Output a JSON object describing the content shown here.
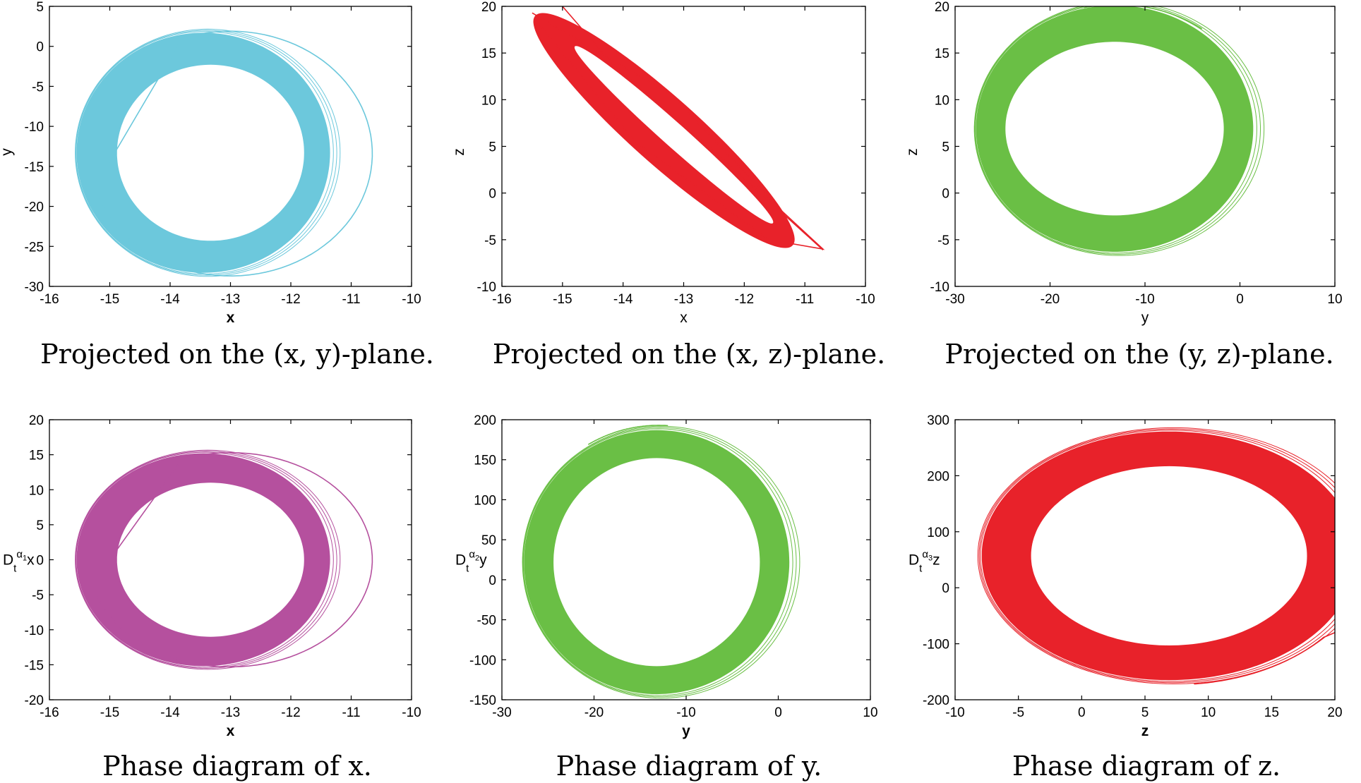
{
  "colors": {
    "cyan": "#6cc8dc",
    "red": "#e8222a",
    "green": "#6abf45",
    "magenta": "#b5509e"
  },
  "chart_data": [
    {
      "type": "line",
      "id": "xy",
      "title": "",
      "caption": "Projected on the (x, y)-plane.",
      "xlabel": "x",
      "xbold": true,
      "ylabel": "y",
      "ylabel_sub": "",
      "ylabel_tail": "",
      "xlim": [
        -16,
        -10
      ],
      "ylim": [
        -30,
        5
      ],
      "xticks": [
        -16,
        -15,
        -14,
        -13,
        -12,
        -11,
        -10
      ],
      "yticks": [
        -30,
        -25,
        -20,
        -15,
        -10,
        -5,
        0,
        5
      ],
      "xtick_labels": [
        "-16",
        "-15",
        "-14",
        "-13",
        "-12",
        "-11",
        "-10"
      ],
      "ytick_labels": [
        "-30",
        "-25",
        "-20",
        "-15",
        "-10",
        "-5",
        "0",
        "5"
      ],
      "color": "cyan",
      "attractor": {
        "cx": -13.45,
        "cy": -13.3,
        "rx_outer": 2.1,
        "ry_outer": 15.0,
        "rx_inner": 1.55,
        "ry_inner": 11.0,
        "rot": 0,
        "shift": 0.12
      },
      "orbit": {
        "cx": -13.0,
        "cy": -13.4,
        "rx": 2.35,
        "ry": 15.3,
        "rot": 0,
        "t0": 200,
        "t1": 470,
        "end": [
          -15.05,
          -15
        ]
      }
    },
    {
      "type": "line",
      "id": "xz",
      "title": "",
      "caption": "Projected on the (x, z)-plane.",
      "xlabel": "x",
      "xbold": false,
      "ylabel": "z",
      "ylabel_sub": "",
      "ylabel_tail": "",
      "xlim": [
        -16,
        -10
      ],
      "ylim": [
        -10,
        20
      ],
      "xticks": [
        -16,
        -15,
        -14,
        -13,
        -12,
        -11,
        -10
      ],
      "yticks": [
        -10,
        -5,
        0,
        5,
        10,
        15,
        20
      ],
      "xtick_labels": [
        "-16",
        "-15",
        "-14",
        "-13",
        "-12",
        "-11",
        "-10"
      ],
      "ytick_labels": [
        "-10",
        "-5",
        "0",
        "5",
        "10",
        "15",
        "20"
      ],
      "color": "red",
      "streak": {
        "from": [
          -15.45,
          19.0
        ],
        "to": [
          -11.2,
          -5.6
        ],
        "width": 0.55
      },
      "outer_loop": [
        [
          -15.5,
          19.3
        ],
        [
          -13.2,
          10.5
        ],
        [
          -11.4,
          -1.8
        ],
        [
          -10.7,
          -6.0
        ],
        [
          -11.6,
          -5.0
        ],
        [
          -13.8,
          5.5
        ],
        [
          -15.4,
          18.2
        ]
      ],
      "tail": [
        [
          -15.0,
          20.0
        ],
        [
          -14.2,
          14.0
        ],
        [
          -12.5,
          4.5
        ],
        [
          -10.7,
          -6.1
        ]
      ]
    },
    {
      "type": "line",
      "id": "yz",
      "title": "",
      "caption": "Projected on the (y, z)-plane.",
      "xlabel": "y",
      "xbold": false,
      "ylabel": "z",
      "ylabel_sub": "",
      "ylabel_tail": "",
      "xlim": [
        -30,
        10
      ],
      "ylim": [
        -10,
        20
      ],
      "xticks": [
        -30,
        -20,
        -10,
        0,
        10
      ],
      "yticks": [
        -10,
        -5,
        0,
        5,
        10,
        15,
        20
      ],
      "xtick_labels": [
        "-30",
        "-20",
        "-10",
        "0",
        "10"
      ],
      "ytick_labels": [
        "-10",
        "-5",
        "0",
        "5",
        "10",
        "15",
        "20"
      ],
      "color": "green",
      "attractor": {
        "cx": -13.2,
        "cy": 6.9,
        "rx_outer": 14.6,
        "ry_outer": 13.2,
        "rx_inner": 11.5,
        "ry_inner": 9.3,
        "rot": -0.12,
        "shift": 0.0
      },
      "orbit": {
        "cx": -13.0,
        "cy": 7.2,
        "rx": 15.0,
        "ry": 13.0,
        "rot": -0.12,
        "t0": 60,
        "t1": 110,
        "end": null
      }
    },
    {
      "type": "line",
      "id": "px",
      "title": "",
      "caption": "Phase diagram of x.",
      "xlabel": "x",
      "xbold": true,
      "ylabel": "D",
      "ylabel_sub": "t",
      "ylabel_sup": "α",
      "ylabel_sup_sub": "1",
      "ylabel_tail": "x",
      "xlim": [
        -16,
        -10
      ],
      "ylim": [
        -20,
        20
      ],
      "xticks": [
        -16,
        -15,
        -14,
        -13,
        -12,
        -11,
        -10
      ],
      "yticks": [
        -20,
        -15,
        -10,
        -5,
        0,
        5,
        10,
        15,
        20
      ],
      "xtick_labels": [
        "-16",
        "-15",
        "-14",
        "-13",
        "-12",
        "-11",
        "-10"
      ],
      "ytick_labels": [
        "-20",
        "-15",
        "-10",
        "-5",
        "0",
        "5",
        "10",
        "15",
        "20"
      ],
      "color": "magenta",
      "attractor": {
        "cx": -13.45,
        "cy": 0.0,
        "rx_outer": 2.1,
        "ry_outer": 15.2,
        "rx_inner": 1.55,
        "ry_inner": 11.0,
        "rot": 0,
        "shift": 0.12
      },
      "orbit": {
        "cx": -13.0,
        "cy": 0.0,
        "rx": 2.35,
        "ry": 15.3,
        "rot": 0,
        "t0": 200,
        "t1": 470,
        "end": [
          -15.0,
          0.0
        ]
      }
    },
    {
      "type": "line",
      "id": "py",
      "title": "",
      "caption": "Phase diagram of y.",
      "xlabel": "y",
      "xbold": true,
      "ylabel": "D",
      "ylabel_sub": "t",
      "ylabel_sup": "α",
      "ylabel_sup_sub": "2",
      "ylabel_tail": "y",
      "xlim": [
        -30,
        10
      ],
      "ylim": [
        -150,
        200
      ],
      "xticks": [
        -30,
        -20,
        -10,
        0,
        10
      ],
      "yticks": [
        -150,
        -100,
        -50,
        0,
        50,
        100,
        150,
        200
      ],
      "xtick_labels": [
        "-30",
        "-20",
        "-10",
        "0",
        "10"
      ],
      "ytick_labels": [
        "-150",
        "-100",
        "-50",
        "0",
        "50",
        "100",
        "150",
        "200"
      ],
      "color": "green",
      "attractor": {
        "cx": -13.2,
        "cy": 22.0,
        "rx_outer": 14.4,
        "ry_outer": 165.0,
        "rx_inner": 11.2,
        "ry_inner": 130.0,
        "rot": 0.28,
        "shift": 0.0
      },
      "orbit": {
        "cx": -13.0,
        "cy": 25.0,
        "rx": 14.8,
        "ry": 168.0,
        "rot": 0.28,
        "t0": 70,
        "t1": 105,
        "end": null
      }
    },
    {
      "type": "line",
      "id": "pz",
      "title": "",
      "caption": "Phase diagram of z.",
      "xlabel": "z",
      "xbold": true,
      "ylabel": "D",
      "ylabel_sub": "t",
      "ylabel_sup": "α",
      "ylabel_sup_sub": "3",
      "ylabel_tail": "z",
      "xlim": [
        -10,
        20
      ],
      "ylim": [
        -200,
        300
      ],
      "xticks": [
        -10,
        -5,
        0,
        5,
        10,
        15,
        20
      ],
      "yticks": [
        -200,
        -100,
        0,
        100,
        200,
        300
      ],
      "xtick_labels": [
        "-10",
        "-5",
        "0",
        "5",
        "10",
        "15",
        "20"
      ],
      "ytick_labels": [
        "-200",
        "-100",
        "0",
        "100",
        "200",
        "300"
      ],
      "color": "red",
      "attractor": {
        "cx": 6.9,
        "cy": 57.0,
        "rx_outer": 14.8,
        "ry_outer": 222.0,
        "rx_inner": 10.9,
        "ry_inner": 160.0,
        "rot": -0.42,
        "shift": 0.0
      },
      "orbit": {
        "cx": 7.3,
        "cy": 55.0,
        "rx": 15.2,
        "ry": 228.0,
        "rot": -0.42,
        "t0": 300,
        "t1": 345,
        "end": [
          20.0,
          -80.0
        ]
      }
    }
  ]
}
